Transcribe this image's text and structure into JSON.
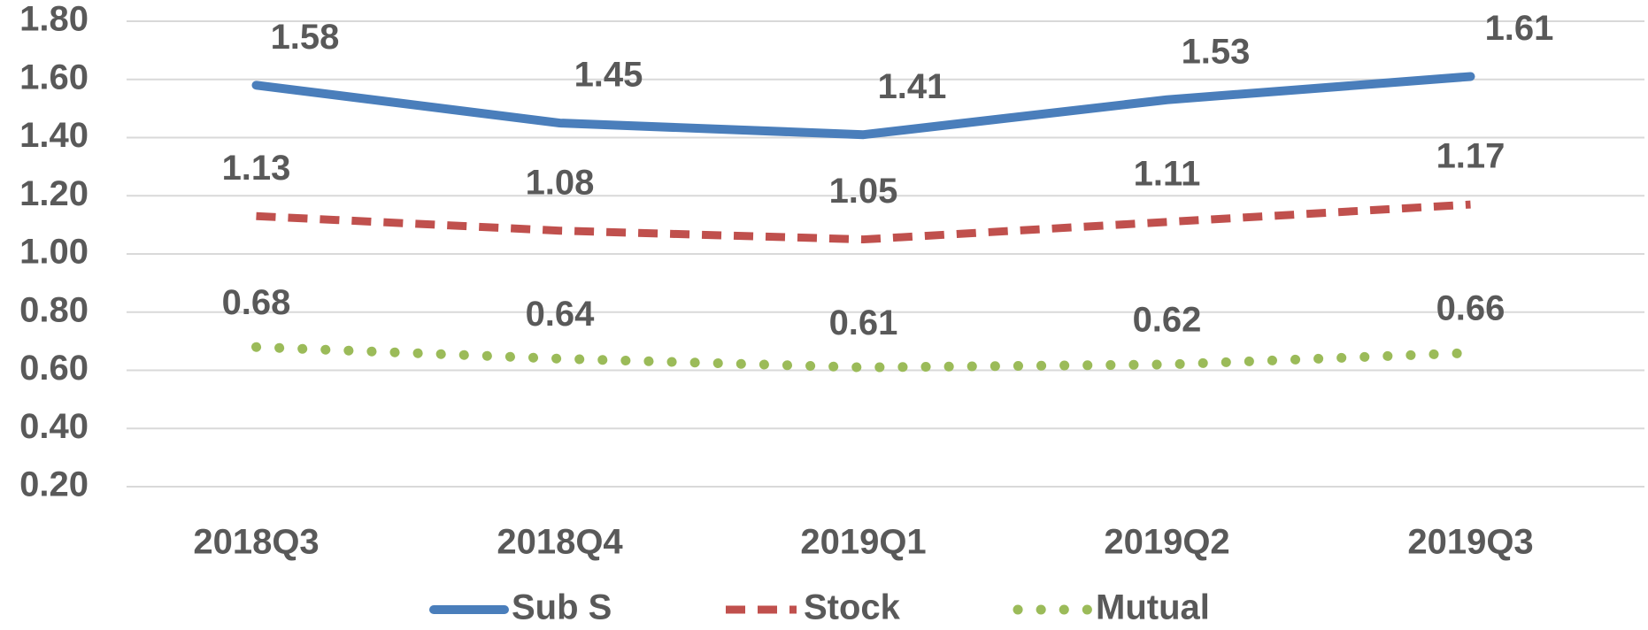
{
  "chart_data": {
    "type": "line",
    "categories": [
      "2018Q3",
      "2018Q4",
      "2019Q1",
      "2019Q2",
      "2019Q3"
    ],
    "series": [
      {
        "name": "Sub S",
        "color": "#4a7ebb",
        "style": "solid",
        "values": [
          1.58,
          1.45,
          1.41,
          1.53,
          1.61
        ]
      },
      {
        "name": "Stock",
        "color": "#c0504d",
        "style": "dashed",
        "values": [
          1.13,
          1.08,
          1.05,
          1.11,
          1.17
        ]
      },
      {
        "name": "Mutual",
        "color": "#9bbb59",
        "style": "dotted",
        "values": [
          0.68,
          0.64,
          0.61,
          0.62,
          0.66
        ]
      }
    ],
    "ylim": [
      0.2,
      1.8
    ],
    "yticks": [
      {
        "value": 0.2,
        "label": "0.20"
      },
      {
        "value": 0.4,
        "label": "0.40"
      },
      {
        "value": 0.6,
        "label": "0.60"
      },
      {
        "value": 0.8,
        "label": "0.80"
      },
      {
        "value": 1.0,
        "label": "1.00"
      },
      {
        "value": 1.2,
        "label": "1.20"
      },
      {
        "value": 1.4,
        "label": "1.40"
      },
      {
        "value": 1.6,
        "label": "1.60"
      },
      {
        "value": 1.8,
        "label": "1.80"
      }
    ],
    "grid": true,
    "legend": "bottom"
  }
}
